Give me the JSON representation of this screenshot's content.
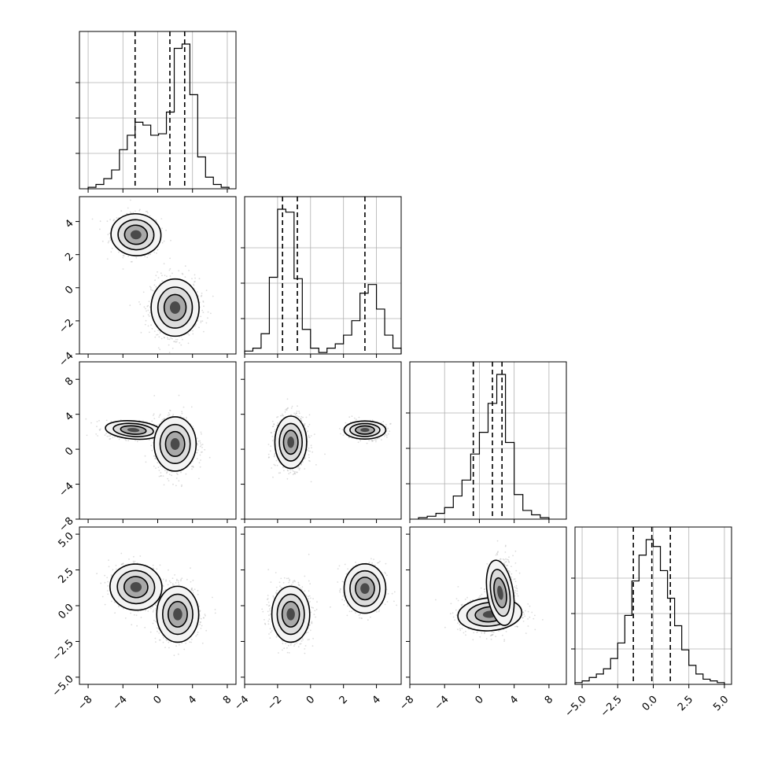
{
  "chart_data": {
    "type": "corner",
    "grid": true,
    "variables": [
      {
        "ticks": [
          -8,
          -4,
          0,
          4,
          8
        ],
        "range": [
          -9,
          9
        ],
        "hist": {
          "bins": [
            -8,
            -7.1,
            -6.2,
            -5.3,
            -4.4,
            -3.5,
            -2.6,
            -1.7,
            -0.8,
            0.1,
            1.0,
            1.9,
            2.8,
            3.7,
            4.6,
            5.5,
            6.4,
            7.3,
            8.2
          ],
          "counts": [
            1,
            3,
            7,
            13,
            27,
            37,
            46,
            44,
            37,
            38,
            53,
            97,
            100,
            65,
            22,
            8,
            3,
            1
          ],
          "quantiles": [
            -2.6,
            1.4,
            3.1
          ]
        }
      },
      {
        "ticks": [
          -4,
          -2,
          0,
          2,
          4
        ],
        "range": [
          -4,
          5.5
        ],
        "hist": {
          "bins": [
            -4,
            -3.5,
            -3,
            -2.5,
            -2,
            -1.5,
            -1,
            -0.5,
            0,
            0.5,
            1,
            1.5,
            2,
            2.5,
            3,
            3.5,
            4,
            4.5,
            5,
            5.5
          ],
          "counts": [
            2,
            4,
            14,
            53,
            100,
            98,
            52,
            17,
            4,
            1,
            4,
            7,
            13,
            23,
            42,
            48,
            31,
            13,
            4
          ],
          "quantiles": [
            -1.7,
            -0.8,
            3.3
          ]
        }
      },
      {
        "ticks": [
          -8,
          -4,
          0,
          4,
          8
        ],
        "range": [
          -8,
          10
        ],
        "hist": {
          "bins": [
            -7,
            -6,
            -5,
            -4,
            -3,
            -2,
            -1,
            0,
            1,
            2,
            3,
            4,
            5,
            6,
            7,
            8
          ],
          "counts": [
            1,
            2,
            4,
            8,
            16,
            27,
            45,
            60,
            80,
            100,
            53,
            17,
            6,
            3,
            1
          ],
          "quantiles": [
            -0.7,
            1.5,
            2.6
          ]
        }
      },
      {
        "ticks": [
          -5.0,
          -2.5,
          0.0,
          2.5,
          5.0
        ],
        "tick_labels": [
          "−5.0",
          "−2.5",
          "0.0",
          "2.5",
          "5.0"
        ],
        "range": [
          -5.5,
          5.5
        ],
        "hist": {
          "bins": [
            -5.5,
            -5,
            -4.5,
            -4,
            -3.5,
            -3,
            -2.5,
            -2,
            -1.5,
            -1,
            -0.5,
            0,
            0.5,
            1,
            1.5,
            2,
            2.5,
            3,
            3.5,
            4,
            4.5,
            5
          ],
          "counts": [
            1,
            2,
            4,
            6,
            9,
            15,
            24,
            40,
            60,
            75,
            84,
            80,
            66,
            50,
            34,
            20,
            11,
            6,
            3,
            2,
            1
          ],
          "quantiles": [
            -1.4,
            -0.1,
            1.2
          ]
        }
      }
    ],
    "tick_label_map": {
      "-8": "−8",
      "-4": "−4",
      "-2": "−2",
      "0": "0",
      "2": "2",
      "4": "4",
      "8": "8"
    },
    "pairs": [
      {
        "row": 1,
        "col": 0,
        "clusters": [
          {
            "cx": -2.5,
            "cy": 3.2,
            "sx": 1.25,
            "sy": 0.55,
            "rho": -0.1,
            "w": 0.35
          },
          {
            "cx": 2.0,
            "cy": -1.2,
            "sx": 1.2,
            "sy": 0.75,
            "rho": 0.0,
            "w": 0.65
          }
        ]
      },
      {
        "row": 2,
        "col": 0,
        "clusters": [
          {
            "cx": -2.8,
            "cy": 2.2,
            "sx": 1.4,
            "sy": 0.45,
            "rho": -0.1,
            "w": 0.33
          },
          {
            "cx": 2.0,
            "cy": 0.6,
            "sx": 1.05,
            "sy": 1.35,
            "rho": 0.0,
            "w": 0.67
          }
        ]
      },
      {
        "row": 2,
        "col": 1,
        "clusters": [
          {
            "cx": -1.2,
            "cy": 0.8,
            "sx": 0.42,
            "sy": 1.3,
            "rho": 0.0,
            "w": 0.67
          },
          {
            "cx": 3.3,
            "cy": 2.2,
            "sx": 0.55,
            "sy": 0.45,
            "rho": 0.0,
            "w": 0.33
          }
        ]
      },
      {
        "row": 3,
        "col": 0,
        "clusters": [
          {
            "cx": -2.5,
            "cy": 1.3,
            "sx": 1.3,
            "sy": 0.7,
            "rho": -0.1,
            "w": 0.35
          },
          {
            "cx": 2.3,
            "cy": -0.6,
            "sx": 1.05,
            "sy": 0.85,
            "rho": 0.0,
            "w": 0.65
          }
        ]
      },
      {
        "row": 3,
        "col": 1,
        "clusters": [
          {
            "cx": -1.2,
            "cy": -0.6,
            "sx": 0.5,
            "sy": 0.85,
            "rho": 0.0,
            "w": 0.65
          },
          {
            "cx": 3.3,
            "cy": 1.2,
            "sx": 0.55,
            "sy": 0.75,
            "rho": 0.0,
            "w": 0.35
          }
        ]
      },
      {
        "row": 3,
        "col": 2,
        "clusters": [
          {
            "cx": 1.2,
            "cy": -0.6,
            "sx": 1.6,
            "sy": 0.5,
            "rho": 0.1,
            "w": 0.5
          },
          {
            "cx": 2.4,
            "cy": 0.9,
            "sx": 0.65,
            "sy": 1.0,
            "rho": 0.2,
            "w": 0.5
          }
        ]
      }
    ]
  }
}
